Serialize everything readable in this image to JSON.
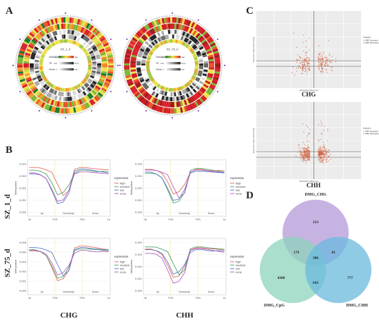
{
  "panels": {
    "A": {
      "letter": "A",
      "circos": [
        {
          "sample": "SZ_1_d",
          "legend_rows": [
            {
              "label": "DMC/DMA",
              "low": "low",
              "high": "high"
            },
            {
              "label": "TE",
              "low": "0 bp",
              "high": "3k bp"
            },
            {
              "label": "Gene",
              "low": "0",
              "high": "100"
            }
          ]
        },
        {
          "sample": "SZ_75_d",
          "legend_rows": [
            {
              "label": "DMC/DMA",
              "low": "low",
              "high": "high"
            },
            {
              "label": "TE",
              "low": "0 bp",
              "high": "3k bp"
            },
            {
              "label": "Gene",
              "low": "0",
              "high": "100"
            }
          ]
        }
      ]
    },
    "B": {
      "letter": "B",
      "row_labels": [
        "SZ_1_d",
        "SZ_75_d"
      ],
      "col_labels": [
        "CHG",
        "CHH"
      ],
      "x_ticks": [
        "-1k",
        "TSS",
        "TES",
        "1k"
      ],
      "region_labels": [
        "Up",
        "Genebody",
        "Down"
      ],
      "y_axis_label": "Methylation",
      "legend_title": "expression",
      "legend_items": [
        "high",
        "medium",
        "low",
        "none"
      ],
      "line_colors": [
        "#e36c5f",
        "#4aa36c",
        "#5a78c8",
        "#b060c0"
      ],
      "plots": [
        {
          "y_ticks": [
            "0.004",
            "0.003",
            "0.002",
            "0.001",
            "0.000"
          ]
        },
        {
          "y_ticks": [
            "0.004",
            "0.003",
            "0.002",
            "0.001",
            "0.000"
          ]
        },
        {
          "y_ticks": [
            "0.005",
            "0.004",
            "0.003",
            "0.002",
            "0.001",
            "0.000"
          ]
        },
        {
          "y_ticks": [
            "0.004",
            "0.003",
            "0.002",
            "0.001",
            "0.000"
          ]
        }
      ]
    },
    "C": {
      "letter": "C",
      "plots": [
        {
          "caption": "CHG",
          "xlabel": "Methylation difference",
          "ylabel": "Expression log2 Fold Change",
          "legend_title": "Category",
          "legend_items": [
            "DMG (Increase)",
            "DMG (Decrease)"
          ]
        },
        {
          "caption": "CHH",
          "xlabel": "Methylation difference",
          "ylabel": "Expression log2 Fold Change",
          "legend_title": "Category",
          "legend_items": [
            "DMG (Increase)",
            "DMG (Decrease)"
          ]
        }
      ],
      "point_color": "#d2694a"
    },
    "D": {
      "letter": "D",
      "chart_data": {
        "type": "venn",
        "sets": [
          "DMG_CHG",
          "DMG_CpG",
          "DMG_CHH"
        ],
        "colors": [
          "#b49ad8",
          "#8dd3bc",
          "#6bb9de"
        ],
        "regions": [
          {
            "sets": [
              "DMG_CHG"
            ],
            "value": 233
          },
          {
            "sets": [
              "DMG_CpG"
            ],
            "value": 4300
          },
          {
            "sets": [
              "DMG_CHH"
            ],
            "value": 777
          },
          {
            "sets": [
              "DMG_CHG",
              "DMG_CpG"
            ],
            "value": 179
          },
          {
            "sets": [
              "DMG_CHG",
              "DMG_CHH"
            ],
            "value": 81
          },
          {
            "sets": [
              "DMG_CpG",
              "DMG_CHH"
            ],
            "value": 642
          },
          {
            "sets": [
              "DMG_CHG",
              "DMG_CpG",
              "DMG_CHH"
            ],
            "value": 386
          }
        ]
      }
    }
  }
}
